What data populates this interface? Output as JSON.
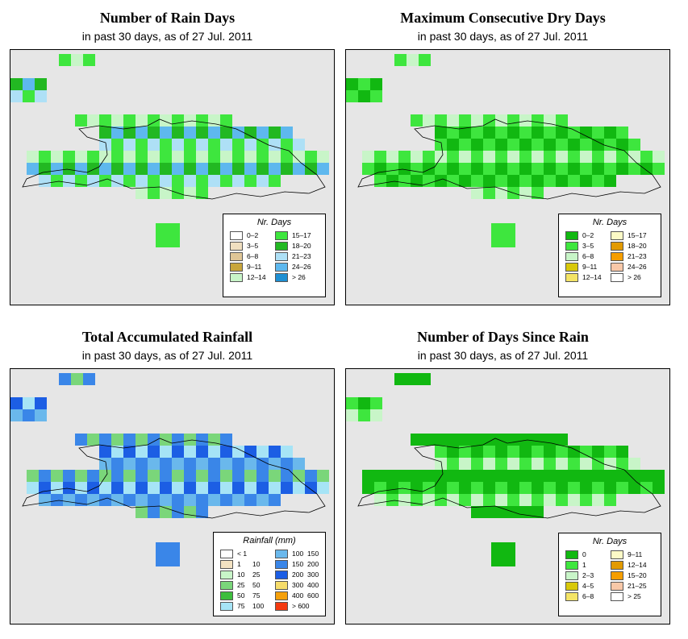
{
  "panels": [
    {
      "title": "Number of Rain Days",
      "subtitle": "in past 30 days, as of  27 Jul. 2011",
      "legend_title": "Nr. Days",
      "legend": [
        {
          "label": "0–2",
          "color": "#ffffff"
        },
        {
          "label": "3–5",
          "color": "#f0dfc0"
        },
        {
          "label": "6–8",
          "color": "#dfc697"
        },
        {
          "label": "9–11",
          "color": "#c8a63c"
        },
        {
          "label": "12–14",
          "color": "#c8f5c8"
        },
        {
          "label": "15–17",
          "color": "#3ee63e"
        },
        {
          "label": "18–20",
          "color": "#22b822"
        },
        {
          "label": "21–23",
          "color": "#aee0f6"
        },
        {
          "label": "24–26",
          "color": "#5eb8ee"
        },
        {
          "label": "> 26",
          "color": "#1e8fd2"
        }
      ]
    },
    {
      "title": "Maximum Consecutive Dry Days",
      "subtitle": "in past 30 days, as of  27 Jul. 2011",
      "legend_title": "Nr. Days",
      "legend": [
        {
          "label": "0–2",
          "color": "#11b811"
        },
        {
          "label": "3–5",
          "color": "#3ee63e"
        },
        {
          "label": "6–8",
          "color": "#c8f5c8"
        },
        {
          "label": "9–11",
          "color": "#d8c80a"
        },
        {
          "label": "12–14",
          "color": "#f4e466"
        },
        {
          "label": "15–17",
          "color": "#fcfac6"
        },
        {
          "label": "18–20",
          "color": "#e29a00"
        },
        {
          "label": "21–23",
          "color": "#f59e00"
        },
        {
          "label": "24–26",
          "color": "#f8c8a8"
        },
        {
          "label": "> 26",
          "color": "#ffffff"
        }
      ]
    },
    {
      "title": "Total Accumulated Rainfall",
      "subtitle": "in past 30 days, as of  27 Jul. 2011",
      "legend_title": "Rainfall (mm)",
      "legend": [
        {
          "label": "< 1",
          "label2": "",
          "color": "#ffffff"
        },
        {
          "label": "1",
          "label2": "10",
          "color": "#f3e2c2"
        },
        {
          "label": "10",
          "label2": "25",
          "color": "#c8f5c8"
        },
        {
          "label": "25",
          "label2": "50",
          "color": "#7ad67a"
        },
        {
          "label": "50",
          "label2": "75",
          "color": "#3ebe3e"
        },
        {
          "label": "75",
          "label2": "100",
          "color": "#a6e4f6"
        },
        {
          "label": "100",
          "label2": "150",
          "color": "#6ab8ec"
        },
        {
          "label": "150",
          "label2": "200",
          "color": "#3a86e8"
        },
        {
          "label": "200",
          "label2": "300",
          "color": "#1c5ee4"
        },
        {
          "label": "300",
          "label2": "400",
          "color": "#f6dc6a"
        },
        {
          "label": "400",
          "label2": "600",
          "color": "#f5a00a"
        },
        {
          "label": "> 600",
          "label2": "",
          "color": "#f43a10"
        }
      ]
    },
    {
      "title": "Number of Days Since Rain",
      "subtitle": "in past 30 days, as of  27 Jul. 2011",
      "legend_title": "Nr. Days",
      "legend": [
        {
          "label": "0",
          "color": "#11b811"
        },
        {
          "label": "1",
          "color": "#3ee63e"
        },
        {
          "label": "2–3",
          "color": "#c8f5c8"
        },
        {
          "label": "4–5",
          "color": "#d8c80a"
        },
        {
          "label": "6–8",
          "color": "#f4e466"
        },
        {
          "label": "9–11",
          "color": "#fcfac6"
        },
        {
          "label": "12–14",
          "color": "#e29a00"
        },
        {
          "label": "15–20",
          "color": "#f59e00"
        },
        {
          "label": "21–25",
          "color": "#f8c8a8"
        },
        {
          "label": "> 25",
          "color": "#ffffff"
        }
      ]
    }
  ]
}
